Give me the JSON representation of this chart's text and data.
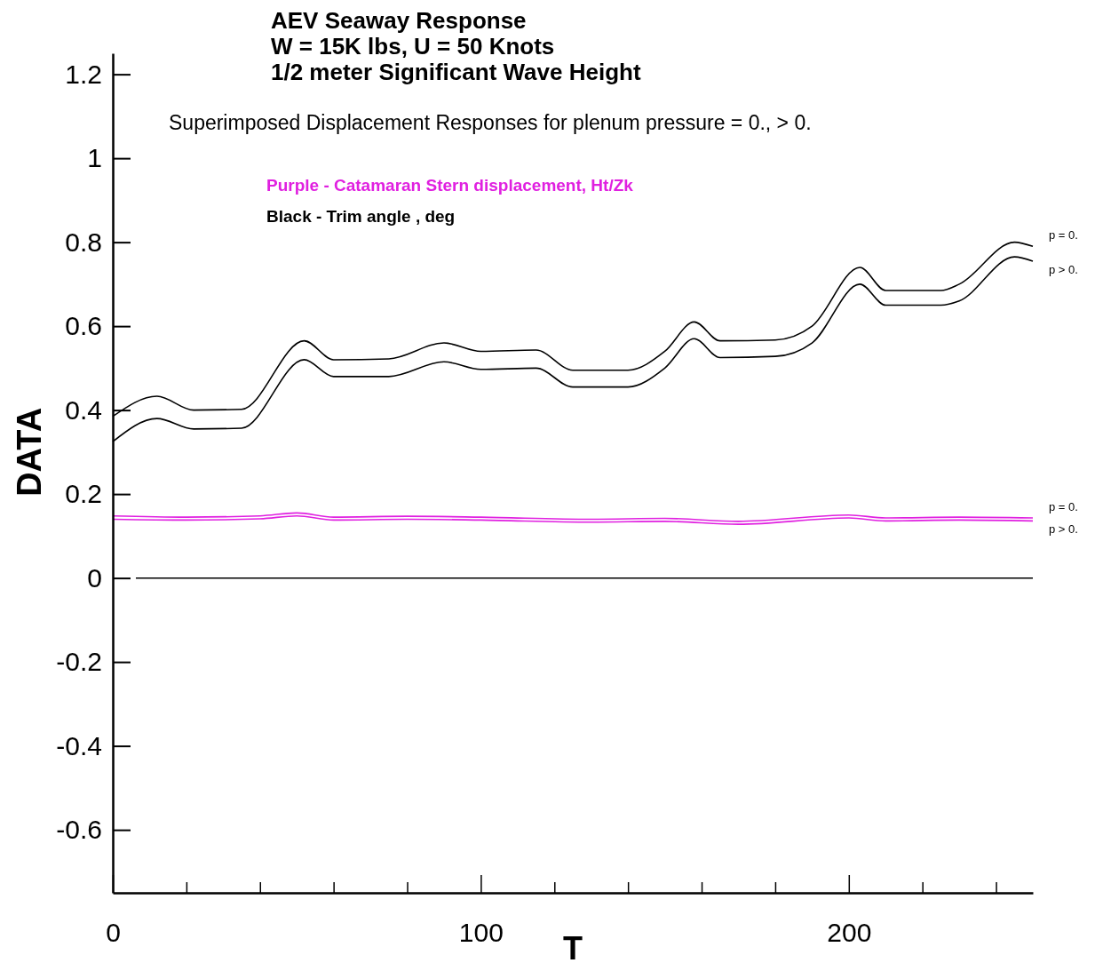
{
  "chart_data": {
    "type": "line",
    "title": "AEV Seaway Response\nW = 15K lbs, U = 50 Knots\n1/2 meter Significant Wave Height",
    "xlabel": "T",
    "ylabel": "DATA",
    "annotations": [
      "Superimposed Displacement Responses for plenum pressure = 0., > 0.",
      "Purple - Catamaran Stern displacement, Ht/Zk",
      "Black - Trim angle , deg"
    ],
    "xlim": [
      0,
      250
    ],
    "ylim": [
      -0.75,
      1.25
    ],
    "xticks": [
      0,
      {
        "value": 20,
        "label": null
      },
      {
        "value": 40,
        "label": null
      },
      {
        "value": 60,
        "label": null
      },
      {
        "value": 80,
        "label": null
      },
      100,
      {
        "value": 120,
        "label": null
      },
      {
        "value": 140,
        "label": null
      },
      {
        "value": 160,
        "label": null
      },
      {
        "value": 180,
        "label": null
      },
      200,
      {
        "value": 220,
        "label": null
      },
      {
        "value": 240,
        "label": null
      }
    ],
    "yticks": [
      -0.6,
      -0.4,
      -0.2,
      0,
      0.2,
      0.4,
      0.6,
      0.8,
      1,
      1.2
    ],
    "ref_lines": [
      {
        "axis": "y",
        "value": 0,
        "color": "#000000"
      }
    ],
    "grid": false,
    "legend": false,
    "marker": "none",
    "line_style": "solid",
    "series": [
      {
        "name": "p = 0.",
        "color": "#000000",
        "x": [
          0,
          12,
          22,
          35,
          52,
          60,
          75,
          90,
          100,
          115,
          125,
          140,
          150,
          158,
          165,
          180,
          190,
          203,
          210,
          225,
          230,
          245,
          250
        ],
        "values": [
          0.385,
          0.433,
          0.4,
          0.402,
          0.565,
          0.52,
          0.522,
          0.56,
          0.54,
          0.543,
          0.495,
          0.495,
          0.54,
          0.61,
          0.565,
          0.567,
          0.6,
          0.74,
          0.685,
          0.685,
          0.7,
          0.8,
          0.79
        ]
      },
      {
        "name": "p > 0.",
        "color": "#000000",
        "x": [
          0,
          12,
          22,
          35,
          52,
          60,
          75,
          90,
          100,
          115,
          125,
          140,
          150,
          158,
          165,
          180,
          190,
          203,
          210,
          225,
          230,
          245,
          250
        ],
        "values": [
          0.325,
          0.38,
          0.355,
          0.357,
          0.52,
          0.48,
          0.48,
          0.515,
          0.497,
          0.5,
          0.455,
          0.455,
          0.5,
          0.57,
          0.525,
          0.528,
          0.56,
          0.7,
          0.65,
          0.65,
          0.66,
          0.765,
          0.755
        ]
      },
      {
        "name": "p = 0.",
        "color": "#e020e0",
        "x": [
          0,
          20,
          40,
          50,
          60,
          80,
          100,
          130,
          150,
          170,
          200,
          210,
          230,
          250
        ],
        "values": [
          0.148,
          0.145,
          0.148,
          0.155,
          0.145,
          0.147,
          0.145,
          0.14,
          0.142,
          0.135,
          0.15,
          0.143,
          0.145,
          0.143
        ]
      },
      {
        "name": "p > 0.",
        "color": "#e020e0",
        "x": [
          0,
          20,
          40,
          50,
          60,
          80,
          100,
          130,
          150,
          170,
          200,
          210,
          230,
          250
        ],
        "values": [
          0.14,
          0.138,
          0.141,
          0.148,
          0.138,
          0.14,
          0.138,
          0.133,
          0.135,
          0.128,
          0.143,
          0.136,
          0.138,
          0.136
        ]
      }
    ]
  }
}
